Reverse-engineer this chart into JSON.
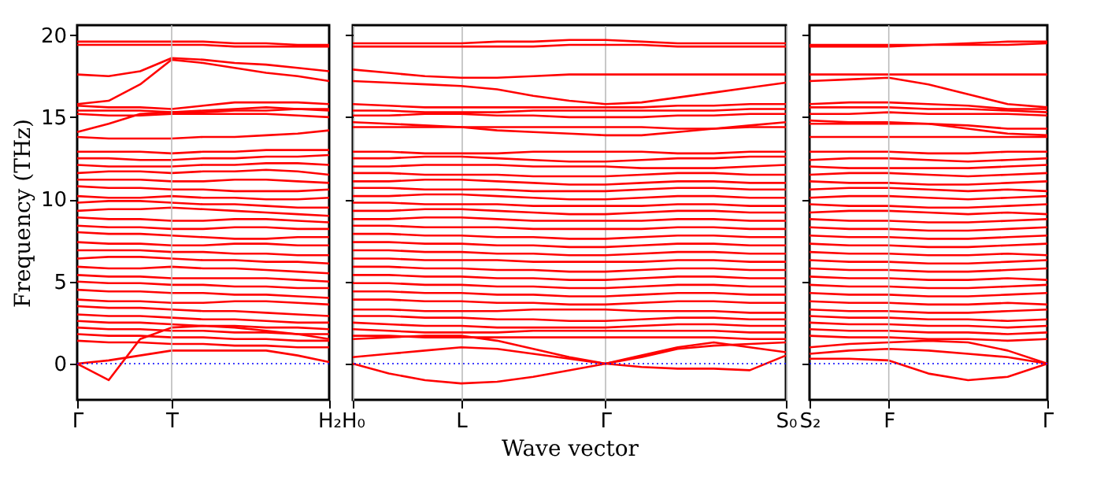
{
  "chart_data": [
    {
      "type": "line",
      "ylabel": "Frequency (THz)",
      "color": "#ff0000",
      "marker": "none",
      "line_style": "solid",
      "categories": [
        "Γ",
        null,
        null,
        "T",
        null,
        null,
        null,
        null,
        "H₂"
      ],
      "ylim": [
        -2.2,
        20.6
      ],
      "yticks": [
        0,
        5,
        10,
        15,
        20
      ],
      "ref_lines": [
        {
          "axis": "y",
          "value": 0,
          "color": "#0000ff",
          "line_style": "dotted"
        },
        {
          "axis": "x",
          "value": "T",
          "color": "#bbbbbb",
          "line_style": "solid"
        }
      ],
      "series": [
        {
          "values": [
            19.6,
            19.6,
            19.6,
            19.6,
            19.6,
            19.5,
            19.5,
            19.4,
            19.4
          ]
        },
        {
          "values": [
            19.4,
            19.4,
            19.4,
            19.4,
            19.4,
            19.3,
            19.3,
            19.3,
            19.3
          ]
        },
        {
          "values": [
            17.6,
            17.5,
            17.8,
            18.6,
            18.5,
            18.3,
            18.2,
            18.0,
            17.8
          ]
        },
        {
          "values": [
            15.8,
            16.0,
            17.0,
            18.5,
            18.3,
            18.0,
            17.7,
            17.5,
            17.2
          ]
        },
        {
          "values": [
            14.1,
            14.6,
            15.2,
            15.3,
            15.3,
            15.4,
            15.4,
            15.5,
            15.5
          ]
        },
        {
          "values": [
            15.7,
            15.6,
            15.6,
            15.5,
            15.7,
            15.9,
            15.9,
            15.9,
            15.8
          ]
        },
        {
          "values": [
            15.4,
            15.4,
            15.4,
            15.3,
            15.4,
            15.5,
            15.6,
            15.5,
            15.4
          ]
        },
        {
          "values": [
            15.2,
            15.1,
            15.1,
            15.2,
            15.2,
            15.2,
            15.2,
            15.1,
            15.0
          ]
        },
        {
          "values": [
            13.8,
            13.7,
            13.7,
            13.7,
            13.8,
            13.8,
            13.9,
            14.0,
            14.2
          ]
        },
        {
          "values": [
            12.9,
            12.9,
            12.9,
            12.8,
            12.9,
            12.9,
            13.0,
            13.0,
            13.0
          ]
        },
        {
          "values": [
            12.5,
            12.5,
            12.4,
            12.4,
            12.5,
            12.5,
            12.6,
            12.6,
            12.7
          ]
        },
        {
          "values": [
            12.1,
            12.0,
            12.0,
            12.0,
            12.1,
            12.1,
            12.2,
            12.2,
            12.1
          ]
        },
        {
          "values": [
            11.6,
            11.7,
            11.7,
            11.6,
            11.7,
            11.7,
            11.8,
            11.7,
            11.5
          ]
        },
        {
          "values": [
            11.2,
            11.2,
            11.2,
            11.1,
            11.1,
            11.2,
            11.2,
            11.1,
            11.0
          ]
        },
        {
          "values": [
            10.8,
            10.7,
            10.7,
            10.6,
            10.6,
            10.5,
            10.5,
            10.5,
            10.6
          ]
        },
        {
          "values": [
            10.2,
            10.1,
            10.1,
            10.2,
            10.1,
            10.1,
            10.0,
            10.0,
            10.1
          ]
        },
        {
          "values": [
            9.8,
            9.9,
            9.9,
            9.8,
            9.7,
            9.7,
            9.6,
            9.5,
            9.5
          ]
        },
        {
          "values": [
            9.3,
            9.4,
            9.4,
            9.5,
            9.4,
            9.3,
            9.2,
            9.1,
            9.0
          ]
        },
        {
          "values": [
            8.9,
            8.8,
            8.8,
            8.7,
            8.7,
            8.8,
            8.8,
            8.7,
            8.6
          ]
        },
        {
          "values": [
            8.4,
            8.3,
            8.3,
            8.2,
            8.2,
            8.3,
            8.3,
            8.2,
            8.2
          ]
        },
        {
          "values": [
            8.0,
            7.9,
            7.9,
            7.8,
            7.7,
            7.6,
            7.6,
            7.7,
            7.7
          ]
        },
        {
          "values": [
            7.4,
            7.3,
            7.3,
            7.2,
            7.2,
            7.3,
            7.3,
            7.2,
            7.2
          ]
        },
        {
          "values": [
            6.9,
            6.9,
            6.9,
            6.8,
            6.8,
            6.7,
            6.7,
            6.6,
            6.6
          ]
        },
        {
          "values": [
            6.4,
            6.5,
            6.5,
            6.4,
            6.3,
            6.3,
            6.2,
            6.2,
            6.1
          ]
        },
        {
          "values": [
            5.9,
            5.8,
            5.8,
            5.9,
            5.8,
            5.8,
            5.7,
            5.6,
            5.5
          ]
        },
        {
          "values": [
            5.4,
            5.3,
            5.3,
            5.2,
            5.2,
            5.2,
            5.2,
            5.1,
            5.0
          ]
        },
        {
          "values": [
            5.0,
            4.9,
            4.9,
            4.8,
            4.8,
            4.7,
            4.7,
            4.6,
            4.6
          ]
        },
        {
          "values": [
            4.5,
            4.4,
            4.4,
            4.3,
            4.3,
            4.2,
            4.2,
            4.1,
            4.0
          ]
        },
        {
          "values": [
            3.9,
            3.8,
            3.8,
            3.7,
            3.7,
            3.8,
            3.8,
            3.7,
            3.6
          ]
        },
        {
          "values": [
            3.5,
            3.4,
            3.4,
            3.3,
            3.2,
            3.2,
            3.1,
            3.0,
            2.9
          ]
        },
        {
          "values": [
            3.0,
            2.9,
            2.9,
            2.8,
            2.7,
            2.7,
            2.6,
            2.5,
            2.5
          ]
        },
        {
          "values": [
            2.6,
            2.5,
            2.5,
            2.4,
            2.3,
            2.3,
            2.2,
            2.2,
            2.1
          ]
        },
        {
          "values": [
            2.2,
            2.1,
            2.1,
            2.0,
            2.0,
            1.9,
            1.9,
            1.8,
            1.8
          ]
        },
        {
          "values": [
            1.8,
            1.7,
            1.7,
            1.6,
            1.6,
            1.5,
            1.5,
            1.4,
            1.4
          ]
        },
        {
          "values": [
            1.4,
            1.3,
            1.3,
            1.2,
            1.2,
            1.1,
            1.1,
            1.0,
            1.0
          ]
        },
        {
          "values": [
            0,
            0.2,
            0.5,
            0.8,
            0.8,
            0.8,
            0.8,
            0.5,
            0.1
          ]
        },
        {
          "values": [
            0,
            -1.0,
            1.5,
            2.2,
            2.3,
            2.2,
            2.0,
            1.8,
            1.5
          ]
        }
      ]
    },
    {
      "type": "line",
      "xlabel": "Wave vector",
      "color": "#ff0000",
      "grid": "x",
      "marker": "none",
      "line_style": "solid",
      "tick_labels": "x",
      "categories": [
        "H₀",
        null,
        null,
        "L",
        null,
        null,
        null,
        "Γ",
        null,
        null,
        null,
        null,
        "S₀"
      ],
      "ylim": [
        -2.2,
        20.6
      ],
      "yticks": [
        0,
        5,
        10,
        15,
        20
      ],
      "ref_lines": [
        {
          "axis": "y",
          "value": 0,
          "color": "#0000ff",
          "line_style": "dotted"
        }
      ],
      "series": [
        {
          "values": [
            19.5,
            19.5,
            19.5,
            19.5,
            19.6,
            19.6,
            19.7,
            19.7,
            19.6,
            19.5,
            19.5,
            19.5,
            19.5
          ]
        },
        {
          "values": [
            19.3,
            19.3,
            19.3,
            19.3,
            19.3,
            19.3,
            19.4,
            19.4,
            19.4,
            19.3,
            19.3,
            19.3,
            19.3
          ]
        },
        {
          "values": [
            17.9,
            17.7,
            17.5,
            17.4,
            17.4,
            17.5,
            17.6,
            17.6,
            17.6,
            17.6,
            17.6,
            17.6,
            17.6
          ]
        },
        {
          "values": [
            17.2,
            17.1,
            17.0,
            16.9,
            16.7,
            16.3,
            16.0,
            15.8,
            15.9,
            16.2,
            16.5,
            16.8,
            17.1
          ]
        },
        {
          "values": [
            15.8,
            15.7,
            15.6,
            15.6,
            15.6,
            15.6,
            15.6,
            15.6,
            15.6,
            15.7,
            15.7,
            15.8,
            15.8
          ]
        },
        {
          "values": [
            15.4,
            15.4,
            15.3,
            15.3,
            15.3,
            15.4,
            15.4,
            15.4,
            15.4,
            15.4,
            15.4,
            15.5,
            15.5
          ]
        },
        {
          "values": [
            15.1,
            15.1,
            15.2,
            15.2,
            15.1,
            15.1,
            15.0,
            15.0,
            15.0,
            15.1,
            15.1,
            15.2,
            15.2
          ]
        },
        {
          "values": [
            14.7,
            14.6,
            14.5,
            14.4,
            14.2,
            14.1,
            14.0,
            13.9,
            13.9,
            14.1,
            14.3,
            14.5,
            14.7
          ]
        },
        {
          "values": [
            14.4,
            14.4,
            14.4,
            14.4,
            14.4,
            14.4,
            14.4,
            14.4,
            14.4,
            14.3,
            14.3,
            14.4,
            14.4
          ]
        },
        {
          "values": [
            12.9,
            12.9,
            12.8,
            12.8,
            12.8,
            12.9,
            12.9,
            12.9,
            12.9,
            12.8,
            12.8,
            12.9,
            12.9
          ]
        },
        {
          "values": [
            12.5,
            12.5,
            12.6,
            12.6,
            12.5,
            12.4,
            12.3,
            12.3,
            12.4,
            12.5,
            12.5,
            12.6,
            12.6
          ]
        },
        {
          "values": [
            12.0,
            12.0,
            12.1,
            12.1,
            12.1,
            12.0,
            12.0,
            12.0,
            11.9,
            11.9,
            11.9,
            12.0,
            12.1
          ]
        },
        {
          "values": [
            11.6,
            11.6,
            11.5,
            11.5,
            11.5,
            11.4,
            11.4,
            11.4,
            11.5,
            11.6,
            11.6,
            11.5,
            11.5
          ]
        },
        {
          "values": [
            11.1,
            11.1,
            11.2,
            11.2,
            11.1,
            11.0,
            10.9,
            10.9,
            11.0,
            11.1,
            11.1,
            11.0,
            11.0
          ]
        },
        {
          "values": [
            10.7,
            10.7,
            10.6,
            10.6,
            10.6,
            10.5,
            10.5,
            10.5,
            10.6,
            10.7,
            10.7,
            10.6,
            10.6
          ]
        },
        {
          "values": [
            10.2,
            10.2,
            10.3,
            10.3,
            10.2,
            10.1,
            10.0,
            10.0,
            10.1,
            10.2,
            10.2,
            10.1,
            10.1
          ]
        },
        {
          "values": [
            9.8,
            9.8,
            9.7,
            9.7,
            9.7,
            9.6,
            9.6,
            9.6,
            9.6,
            9.7,
            9.7,
            9.6,
            9.6
          ]
        },
        {
          "values": [
            9.3,
            9.3,
            9.4,
            9.4,
            9.3,
            9.2,
            9.1,
            9.1,
            9.2,
            9.3,
            9.3,
            9.2,
            9.2
          ]
        },
        {
          "values": [
            8.8,
            8.8,
            8.9,
            8.9,
            8.8,
            8.7,
            8.7,
            8.7,
            8.7,
            8.8,
            8.8,
            8.7,
            8.7
          ]
        },
        {
          "values": [
            8.4,
            8.4,
            8.3,
            8.3,
            8.3,
            8.2,
            8.2,
            8.2,
            8.2,
            8.3,
            8.3,
            8.2,
            8.2
          ]
        },
        {
          "values": [
            7.9,
            7.9,
            7.8,
            7.8,
            7.7,
            7.7,
            7.6,
            7.6,
            7.7,
            7.8,
            7.8,
            7.7,
            7.7
          ]
        },
        {
          "values": [
            7.4,
            7.4,
            7.3,
            7.3,
            7.2,
            7.2,
            7.1,
            7.1,
            7.2,
            7.3,
            7.3,
            7.2,
            7.2
          ]
        },
        {
          "values": [
            6.9,
            6.9,
            6.8,
            6.8,
            6.7,
            6.7,
            6.6,
            6.6,
            6.7,
            6.8,
            6.8,
            6.7,
            6.7
          ]
        },
        {
          "values": [
            6.4,
            6.4,
            6.3,
            6.3,
            6.3,
            6.2,
            6.2,
            6.2,
            6.2,
            6.3,
            6.3,
            6.2,
            6.2
          ]
        },
        {
          "values": [
            5.9,
            5.9,
            5.8,
            5.8,
            5.7,
            5.7,
            5.6,
            5.6,
            5.7,
            5.8,
            5.8,
            5.7,
            5.7
          ]
        },
        {
          "values": [
            5.4,
            5.4,
            5.3,
            5.3,
            5.2,
            5.2,
            5.1,
            5.1,
            5.2,
            5.3,
            5.3,
            5.2,
            5.2
          ]
        },
        {
          "values": [
            4.9,
            4.9,
            4.8,
            4.8,
            4.7,
            4.7,
            4.6,
            4.6,
            4.7,
            4.8,
            4.8,
            4.7,
            4.7
          ]
        },
        {
          "values": [
            4.4,
            4.4,
            4.3,
            4.3,
            4.2,
            4.2,
            4.1,
            4.1,
            4.2,
            4.3,
            4.3,
            4.2,
            4.2
          ]
        },
        {
          "values": [
            3.9,
            3.9,
            3.8,
            3.8,
            3.7,
            3.7,
            3.6,
            3.6,
            3.7,
            3.8,
            3.8,
            3.7,
            3.7
          ]
        },
        {
          "values": [
            3.3,
            3.3,
            3.2,
            3.2,
            3.2,
            3.3,
            3.3,
            3.3,
            3.2,
            3.2,
            3.2,
            3.1,
            3.1
          ]
        },
        {
          "values": [
            2.9,
            2.9,
            2.8,
            2.8,
            2.7,
            2.7,
            2.6,
            2.6,
            2.7,
            2.8,
            2.8,
            2.7,
            2.7
          ]
        },
        {
          "values": [
            2.5,
            2.4,
            2.3,
            2.3,
            2.2,
            2.2,
            2.2,
            2.2,
            2.3,
            2.4,
            2.4,
            2.3,
            2.3
          ]
        },
        {
          "values": [
            2.1,
            2.0,
            1.9,
            1.9,
            1.9,
            2.0,
            2.0,
            2.0,
            2.0,
            2.0,
            2.0,
            1.9,
            1.9
          ]
        },
        {
          "values": [
            1.7,
            1.7,
            1.6,
            1.6,
            1.6,
            1.6,
            1.6,
            1.6,
            1.6,
            1.6,
            1.6,
            1.5,
            1.5
          ]
        },
        {
          "values": [
            1.5,
            1.6,
            1.7,
            1.7,
            1.4,
            0.9,
            0.4,
            0,
            0.4,
            0.9,
            1.1,
            1.2,
            1.3
          ]
        },
        {
          "values": [
            0.4,
            0.6,
            0.8,
            1.0,
            0.9,
            0.6,
            0.3,
            0,
            0.5,
            1.0,
            1.3,
            1.0,
            0.7
          ]
        },
        {
          "values": [
            0,
            -0.6,
            -1.0,
            -1.2,
            -1.1,
            -0.8,
            -0.4,
            0,
            -0.2,
            -0.3,
            -0.3,
            -0.4,
            0.5
          ]
        }
      ]
    },
    {
      "type": "line",
      "color": "#ff0000",
      "marker": "none",
      "line_style": "solid",
      "tick_labels": "x",
      "categories": [
        "S₂",
        null,
        "F",
        null,
        null,
        null,
        "Γ"
      ],
      "ylim": [
        -2.2,
        20.6
      ],
      "yticks": [
        0,
        5,
        10,
        15,
        20
      ],
      "ref_lines": [
        {
          "axis": "y",
          "value": 0,
          "color": "#0000ff",
          "line_style": "dotted"
        },
        {
          "axis": "x",
          "value": "F",
          "color": "#bbbbbb",
          "line_style": "solid"
        }
      ],
      "series": [
        {
          "values": [
            19.4,
            19.4,
            19.4,
            19.4,
            19.5,
            19.6,
            19.6
          ]
        },
        {
          "values": [
            19.3,
            19.3,
            19.3,
            19.4,
            19.4,
            19.4,
            19.5
          ]
        },
        {
          "values": [
            17.6,
            17.6,
            17.6,
            17.6,
            17.6,
            17.6,
            17.6
          ]
        },
        {
          "values": [
            17.2,
            17.3,
            17.4,
            17.0,
            16.4,
            15.8,
            15.6
          ]
        },
        {
          "values": [
            15.8,
            15.9,
            15.9,
            15.8,
            15.7,
            15.5,
            15.5
          ]
        },
        {
          "values": [
            15.6,
            15.6,
            15.6,
            15.5,
            15.5,
            15.4,
            15.3
          ]
        },
        {
          "values": [
            15.2,
            15.2,
            15.3,
            15.2,
            15.2,
            15.2,
            15.1
          ]
        },
        {
          "values": [
            14.8,
            14.7,
            14.7,
            14.6,
            14.3,
            14.0,
            13.9
          ]
        },
        {
          "values": [
            14.6,
            14.6,
            14.6,
            14.6,
            14.5,
            14.3,
            14.3
          ]
        },
        {
          "values": [
            13.8,
            13.8,
            13.8,
            13.8,
            13.8,
            13.8,
            13.8
          ]
        },
        {
          "values": [
            12.9,
            12.9,
            12.9,
            12.8,
            12.8,
            12.9,
            12.9
          ]
        },
        {
          "values": [
            12.4,
            12.5,
            12.5,
            12.4,
            12.3,
            12.4,
            12.5
          ]
        },
        {
          "values": [
            12.0,
            11.9,
            11.9,
            11.9,
            11.9,
            12.0,
            12.1
          ]
        },
        {
          "values": [
            11.5,
            11.6,
            11.6,
            11.5,
            11.4,
            11.5,
            11.6
          ]
        },
        {
          "values": [
            11.1,
            11.0,
            11.0,
            10.9,
            10.9,
            11.0,
            11.1
          ]
        },
        {
          "values": [
            10.6,
            10.7,
            10.7,
            10.6,
            10.5,
            10.6,
            10.5
          ]
        },
        {
          "values": [
            10.1,
            10.2,
            10.2,
            10.1,
            10.0,
            10.1,
            10.2
          ]
        },
        {
          "values": [
            9.7,
            9.6,
            9.6,
            9.5,
            9.5,
            9.6,
            9.7
          ]
        },
        {
          "values": [
            9.2,
            9.3,
            9.3,
            9.2,
            9.1,
            9.2,
            9.1
          ]
        },
        {
          "values": [
            8.8,
            8.7,
            8.7,
            8.6,
            8.6,
            8.7,
            8.8
          ]
        },
        {
          "values": [
            8.3,
            8.2,
            8.2,
            8.1,
            8.1,
            8.2,
            8.3
          ]
        },
        {
          "values": [
            7.8,
            7.7,
            7.7,
            7.6,
            7.6,
            7.7,
            7.8
          ]
        },
        {
          "values": [
            7.3,
            7.2,
            7.2,
            7.1,
            7.1,
            7.2,
            7.3
          ]
        },
        {
          "values": [
            6.8,
            6.7,
            6.7,
            6.6,
            6.6,
            6.7,
            6.6
          ]
        },
        {
          "values": [
            6.3,
            6.2,
            6.2,
            6.1,
            6.1,
            6.2,
            6.3
          ]
        },
        {
          "values": [
            5.8,
            5.7,
            5.7,
            5.6,
            5.6,
            5.7,
            5.8
          ]
        },
        {
          "values": [
            5.3,
            5.2,
            5.2,
            5.1,
            5.1,
            5.2,
            5.1
          ]
        },
        {
          "values": [
            4.8,
            4.7,
            4.7,
            4.6,
            4.6,
            4.7,
            4.8
          ]
        },
        {
          "values": [
            4.3,
            4.2,
            4.2,
            4.1,
            4.1,
            4.2,
            4.3
          ]
        },
        {
          "values": [
            3.8,
            3.7,
            3.7,
            3.6,
            3.6,
            3.7,
            3.6
          ]
        },
        {
          "values": [
            3.3,
            3.2,
            3.2,
            3.1,
            3.1,
            3.2,
            3.3
          ]
        },
        {
          "values": [
            2.9,
            2.8,
            2.8,
            2.7,
            2.7,
            2.6,
            2.7
          ]
        },
        {
          "values": [
            2.5,
            2.4,
            2.4,
            2.3,
            2.3,
            2.2,
            2.3
          ]
        },
        {
          "values": [
            2.1,
            2.0,
            2.0,
            1.9,
            1.9,
            1.8,
            1.9
          ]
        },
        {
          "values": [
            1.7,
            1.6,
            1.6,
            1.5,
            1.5,
            1.4,
            1.5
          ]
        },
        {
          "values": [
            1.0,
            1.2,
            1.3,
            1.4,
            1.3,
            0.8,
            0
          ]
        },
        {
          "values": [
            0.6,
            0.8,
            0.9,
            0.8,
            0.6,
            0.4,
            0
          ]
        },
        {
          "values": [
            0.3,
            0.3,
            0.2,
            -0.6,
            -1.0,
            -0.8,
            0
          ]
        }
      ]
    }
  ]
}
